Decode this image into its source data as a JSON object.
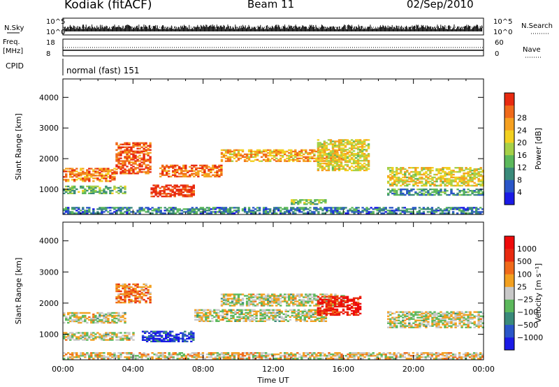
{
  "header": {
    "station": "Kodiak (fitACF)",
    "beam": "Beam 11",
    "date": "02/Sep/2010"
  },
  "top_panels": {
    "nsky_label": "N.Sky",
    "nsky_ticks": [
      "10^5",
      "10^0"
    ],
    "nsearch_label": "N.Search",
    "nsearch_ticks": [
      "10^5",
      "10^0"
    ],
    "freq_label_1": "Freq.",
    "freq_label_2": "[MHz]",
    "freq_ticks": [
      "18",
      "8"
    ],
    "nave_label": "Nave",
    "nave_ticks": [
      "60",
      "0"
    ],
    "cpid_label": "CPID",
    "cpid_text": "normal (fast) 151"
  },
  "chart_data": [
    {
      "type": "heatmap",
      "panel": "power",
      "ylabel": "Slant Range [km]",
      "y_ticks": [
        1000,
        2000,
        3000,
        4000
      ],
      "ylim": [
        180,
        4600
      ],
      "xlim": [
        0,
        24
      ],
      "colorbar_label": "Power [dB]",
      "colorbar_ticks": [
        4,
        8,
        12,
        16,
        20,
        24,
        28
      ],
      "colorbar_colors": [
        "#1a1ae6",
        "#2a56c8",
        "#3a8a7a",
        "#5cb85c",
        "#a6d048",
        "#f2d020",
        "#f5a020",
        "#f06a1a",
        "#e82a10"
      ],
      "bands": [
        {
          "t0": 0.0,
          "t1": 3.0,
          "r0": 1250,
          "r1": 1700,
          "level": 0.78
        },
        {
          "t0": 0.0,
          "t1": 3.5,
          "r0": 850,
          "r1": 1100,
          "level": 0.4
        },
        {
          "t0": 3.0,
          "t1": 5.0,
          "r0": 1500,
          "r1": 2500,
          "level": 0.88
        },
        {
          "t0": 5.0,
          "t1": 7.5,
          "r0": 750,
          "r1": 1150,
          "level": 0.95
        },
        {
          "t0": 5.5,
          "t1": 9.0,
          "r0": 1400,
          "r1": 1800,
          "level": 0.82
        },
        {
          "t0": 9.0,
          "t1": 16.0,
          "r0": 1900,
          "r1": 2300,
          "level": 0.7
        },
        {
          "t0": 14.5,
          "t1": 17.5,
          "r0": 1600,
          "r1": 2600,
          "level": 0.6
        },
        {
          "t0": 13.0,
          "t1": 15.0,
          "r0": 500,
          "r1": 650,
          "level": 0.45
        },
        {
          "t0": 18.5,
          "t1": 24.0,
          "r0": 1100,
          "r1": 1700,
          "level": 0.6
        },
        {
          "t0": 18.5,
          "t1": 24.0,
          "r0": 800,
          "r1": 1000,
          "level": 0.3
        },
        {
          "t0": 0.0,
          "t1": 24.0,
          "r0": 200,
          "r1": 400,
          "level": 0.25
        }
      ]
    },
    {
      "type": "heatmap",
      "panel": "velocity",
      "ylabel": "Slant Range [km]",
      "y_ticks": [
        1000,
        2000,
        3000,
        4000
      ],
      "ylim": [
        180,
        4600
      ],
      "xlim": [
        0,
        24
      ],
      "xlabel": "Time UT",
      "x_ticks": [
        "00:00",
        "04:00",
        "08:00",
        "12:00",
        "16:00",
        "20:00",
        "00:00"
      ],
      "colorbar_label": "Velocity [m s⁻¹]",
      "colorbar_ticks": [
        "1000",
        "500",
        "100",
        "25",
        "−25",
        "−100",
        "−500",
        "−1000"
      ],
      "colorbar_colors": [
        "#1a1ae6",
        "#2a56c8",
        "#3a8a7a",
        "#5cb85c",
        "#c8c8c8",
        "#f2a020",
        "#f06a1a",
        "#e82a10",
        "#ee0a0a"
      ],
      "bands": [
        {
          "t0": 0.0,
          "t1": 3.5,
          "r0": 1350,
          "r1": 1700,
          "level": 0.5
        },
        {
          "t0": 0.0,
          "t1": 4.0,
          "r0": 800,
          "r1": 1050,
          "level": 0.5
        },
        {
          "t0": 3.0,
          "t1": 5.0,
          "r0": 2000,
          "r1": 2600,
          "level": 0.7
        },
        {
          "t0": 4.5,
          "t1": 7.5,
          "r0": 750,
          "r1": 1100,
          "level": 0.15
        },
        {
          "t0": 7.5,
          "t1": 15.0,
          "r0": 1400,
          "r1": 1800,
          "level": 0.5
        },
        {
          "t0": 9.0,
          "t1": 16.0,
          "r0": 1900,
          "r1": 2300,
          "level": 0.5
        },
        {
          "t0": 14.5,
          "t1": 17.0,
          "r0": 1600,
          "r1": 2200,
          "level": 0.9
        },
        {
          "t0": 18.5,
          "t1": 24.0,
          "r0": 1200,
          "r1": 1700,
          "level": 0.5
        },
        {
          "t0": 0.0,
          "t1": 24.0,
          "r0": 200,
          "r1": 400,
          "level": 0.55
        }
      ]
    }
  ]
}
